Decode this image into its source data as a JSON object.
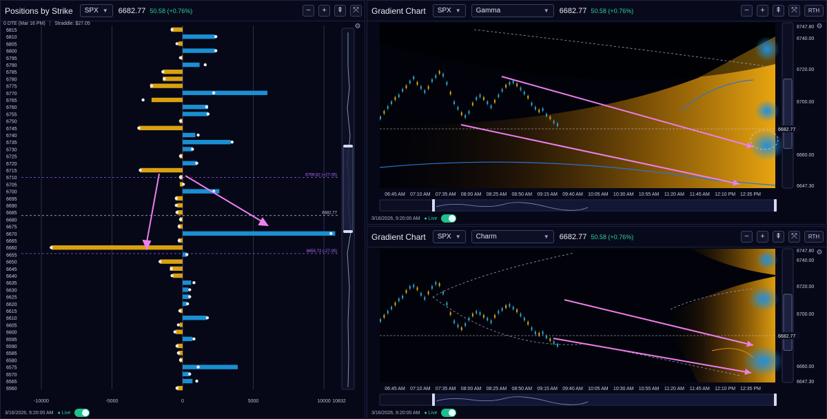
{
  "left": {
    "title": "Positions by Strike",
    "symbol": "SPX",
    "price": "6682.77",
    "change": "50.58 (+0.76%)",
    "dte_label": "0 DTE (Mar 16 PM)",
    "straddle": "Straddle: $27.05",
    "tool_buttons": [
      "−",
      "+",
      "⇞",
      "⤧"
    ],
    "x_ticks": [
      "-10000",
      "-5000",
      "0",
      "5000",
      "10000"
    ],
    "x_max_label": "10832",
    "ref_lines": [
      {
        "strike": 6709.82,
        "label": "6709.82 (+27.05)"
      },
      {
        "strike": 6682.77,
        "label": "6682.77"
      },
      {
        "strike": 6655.72,
        "label": "6655.72 (-27.05)"
      }
    ],
    "footer_time": "3/16/2026, 9:20:00 AM",
    "live_label": "Live",
    "strikes": [
      6815,
      6810,
      6805,
      6800,
      6795,
      6790,
      6785,
      6780,
      6775,
      6770,
      6765,
      6760,
      6755,
      6750,
      6745,
      6740,
      6735,
      6730,
      6725,
      6720,
      6715,
      6710,
      6705,
      6700,
      6695,
      6690,
      6685,
      6680,
      6675,
      6670,
      6665,
      6660,
      6655,
      6650,
      6645,
      6640,
      6635,
      6630,
      6625,
      6620,
      6615,
      6610,
      6605,
      6600,
      6595,
      6590,
      6585,
      6580,
      6575,
      6570,
      6565,
      6560
    ],
    "values": [
      -800,
      2300,
      -300,
      2300,
      -100,
      1200,
      -1400,
      -1400,
      -2300,
      6000,
      -2200,
      1800,
      1800,
      -200,
      -3100,
      900,
      3400,
      700,
      -200,
      1000,
      -3000,
      -200,
      -200,
      2600,
      -500,
      -400,
      -400,
      -200,
      -300,
      10800,
      -300,
      -9300,
      300,
      -1600,
      -900,
      -700,
      600,
      400,
      500,
      300,
      -200,
      1700,
      -200,
      -500,
      700,
      -400,
      -300,
      -200,
      3900,
      500,
      700,
      -400
    ],
    "markers": [
      -750,
      2350,
      -400,
      2350,
      -150,
      1600,
      -1400,
      -1300,
      -2200,
      2200,
      -2800,
      1700,
      1800,
      -150,
      -3100,
      1100,
      3500,
      700,
      -150,
      1000,
      -3000,
      -150,
      50,
      2200,
      -450,
      -450,
      -400,
      -150,
      -250,
      10500,
      -250,
      -9300,
      300,
      -1600,
      -800,
      -750,
      800,
      500,
      500,
      350,
      -200,
      1750,
      -300,
      -550,
      800,
      -400,
      -300,
      -150,
      1100,
      500,
      1000,
      -400
    ]
  },
  "gamma": {
    "title": "Gradient Chart",
    "symbol": "SPX",
    "metric": "Gamma",
    "price": "6682.77",
    "change": "50.58 (+0.76%)",
    "tool_buttons": [
      "−",
      "+",
      "⇞",
      "⤧"
    ],
    "rth_label": "RTH",
    "y_ticks": [
      "6740.00",
      "6720.00",
      "6700.00",
      "6660.00",
      "6647.30"
    ],
    "y_top": "6747.80",
    "y_current": "6682.77",
    "x_ticks": [
      "06:45 AM",
      "07:10 AM",
      "07:35 AM",
      "08:00 AM",
      "08:25 AM",
      "08:50 AM",
      "09:15 AM",
      "09:40 AM",
      "10:05 AM",
      "10:30 AM",
      "10:55 AM",
      "11:20 AM",
      "11:45 AM",
      "12:10 PM",
      "12:35 PM"
    ],
    "footer_time": "3/16/2026, 9:20:00 AM",
    "live_label": "Live"
  },
  "charm": {
    "title": "Gradient Chart",
    "symbol": "SPX",
    "metric": "Charm",
    "price": "6682.77",
    "change": "50.58 (+0.76%)",
    "tool_buttons": [
      "−",
      "+",
      "⇞",
      "⤧"
    ],
    "rth_label": "RTH",
    "y_ticks": [
      "6740.00",
      "6720.00",
      "6700.00",
      "6660.00",
      "6647.30"
    ],
    "y_top": "6747.80",
    "y_current": "6682.77",
    "x_ticks": [
      "06:45 AM",
      "07:10 AM",
      "07:35 AM",
      "08:00 AM",
      "08:25 AM",
      "08:50 AM",
      "09:15 AM",
      "09:40 AM",
      "10:05 AM",
      "10:30 AM",
      "10:55 AM",
      "11:20 AM",
      "11:45 AM",
      "12:10 PM",
      "12:35 PM"
    ],
    "footer_time": "3/16/2026, 9:20:00 AM",
    "live_label": "Live"
  },
  "colors": {
    "call_blue": "#1a8fd1",
    "put_gold": "#d9a10f",
    "accent_pink": "#ee7fef",
    "ref_purple": "#b46cff",
    "live_green": "#2ecc9a",
    "chart_bg": "#02030a"
  },
  "icons": {
    "settings": "gear-icon",
    "select": "chevron-down-icon",
    "zoom_out": "minus-icon",
    "zoom_in": "plus-icon",
    "fit": "fit-vertical-icon",
    "expand": "expand-icon"
  }
}
